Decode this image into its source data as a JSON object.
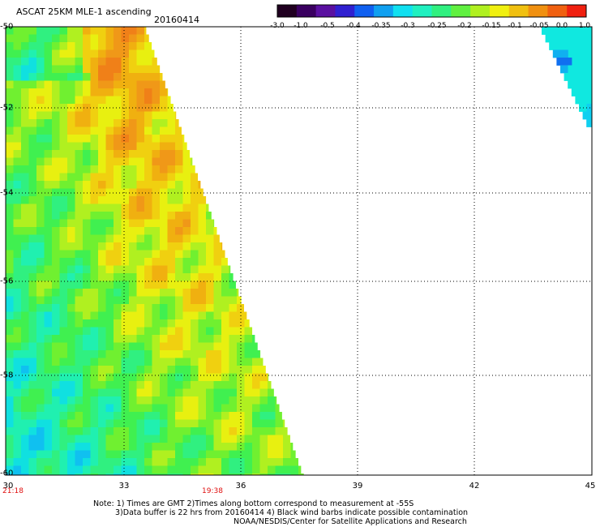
{
  "header": {
    "title": "ASCAT 25KM MLE-1 ascending",
    "date": "20160414"
  },
  "colorbar": {
    "labels": [
      "-3.0",
      "-1.0",
      "-0.5",
      "-0.4",
      "-0.35",
      "-0.3",
      "-0.25",
      "-0.2",
      "-0.15",
      "-0.1",
      "-0.05",
      "0.0",
      "1.0"
    ],
    "colors": [
      "#200020",
      "#3a0060",
      "#5a10a0",
      "#3020d0",
      "#1060f0",
      "#10a0f0",
      "#10e0f0",
      "#20f0c0",
      "#30f080",
      "#60f040",
      "#b0f020",
      "#f0f010",
      "#f0c010",
      "#f09010",
      "#f06010",
      "#f02010"
    ]
  },
  "map": {
    "lat_labels": [
      "-50",
      "-52",
      "-54",
      "-56",
      "-58",
      "-60"
    ],
    "lon_labels": [
      "30",
      "33",
      "36",
      "39",
      "42",
      "45"
    ],
    "time_labels": [
      {
        "text": "21:18",
        "lon": 30
      },
      {
        "text": "19:38",
        "lon": 35
      }
    ]
  },
  "notes": {
    "line1": "Note: 1) Times are GMT 2)Times along bottom correspond to measurement at -55S",
    "line2": "3)Data buffer is 22 hrs from 20160414 4) Black wind barbs indicate possible contamination",
    "line3": "NOAA/NESDIS/Center for Satellite Applications and Research"
  }
}
